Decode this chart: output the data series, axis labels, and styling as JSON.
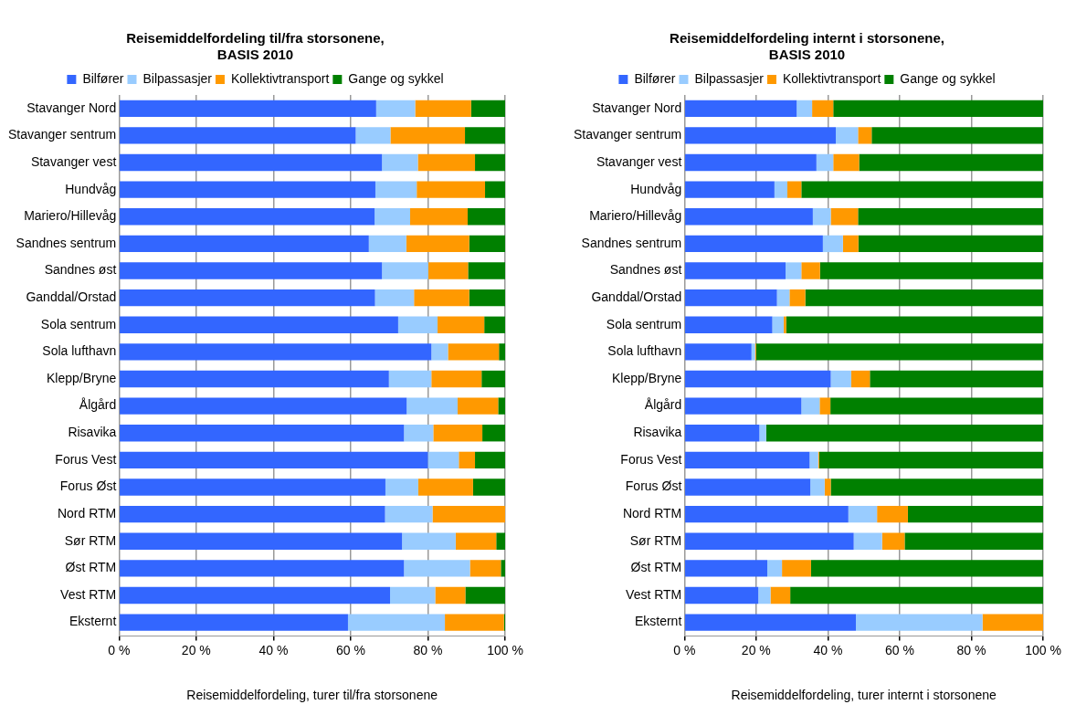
{
  "chart_data": [
    {
      "type": "bar",
      "orientation": "horizontal",
      "stacked": true,
      "title": "Reisemiddelfordeling til/fra storsonene, BASIS 2010",
      "xlabel": "Reisemiddelfordeling, turer til/fra storsonene",
      "categories": [
        "Stavanger Nord",
        "Stavanger sentrum",
        "Stavanger vest",
        "Hundvåg",
        "Mariero/Hillevåg",
        "Sandnes sentrum",
        "Sandnes øst",
        "Ganddal/Orstad",
        "Sola sentrum",
        "Sola lufthavn",
        "Klepp/Bryne",
        "Ålgård",
        "Risavika",
        "Forus Vest",
        "Forus Øst",
        "Nord RTM",
        "Sør RTM",
        "Øst RTM",
        "Vest RTM",
        "Eksternt"
      ],
      "series": [
        {
          "name": "Bilfører",
          "color": "#3366ff",
          "values": [
            66.6,
            61.3,
            68.1,
            66.4,
            66.2,
            64.7,
            68.1,
            66.3,
            72.3,
            80.9,
            69.9,
            74.5,
            73.8,
            80.0,
            69.0,
            68.9,
            73.3,
            73.8,
            70.2,
            59.3
          ]
        },
        {
          "name": "Bilpassasjer",
          "color": "#99ccff",
          "values": [
            10.1,
            9.0,
            9.3,
            10.7,
            9.2,
            9.7,
            12.0,
            10.1,
            10.2,
            4.3,
            11.0,
            13.2,
            7.6,
            8.0,
            8.5,
            12.3,
            13.9,
            17.1,
            11.7,
            25.1
          ]
        },
        {
          "name": "Kollektivtransport",
          "color": "#ff9900",
          "values": [
            14.5,
            19.3,
            14.8,
            17.7,
            14.9,
            16.3,
            10.3,
            14.3,
            12.1,
            13.2,
            13.0,
            10.5,
            12.7,
            4.2,
            14.2,
            18.8,
            10.5,
            8.0,
            7.8,
            15.3
          ]
        },
        {
          "name": "Gange og sykkel",
          "color": "#008000",
          "values": [
            8.8,
            10.4,
            7.8,
            5.2,
            9.7,
            9.3,
            9.6,
            9.3,
            5.4,
            1.6,
            6.1,
            1.8,
            5.9,
            7.8,
            8.3,
            0,
            2.3,
            1.1,
            10.3,
            0.3
          ]
        }
      ],
      "xlim": [
        0,
        100
      ],
      "xticks": [
        {
          "value": 0,
          "label": "0 %"
        },
        {
          "value": 20,
          "label": "20 %"
        },
        {
          "value": 40,
          "label": "40 %"
        },
        {
          "value": 60,
          "label": "60 %"
        },
        {
          "value": 80,
          "label": "80 %"
        },
        {
          "value": 100,
          "label": "100 %"
        }
      ],
      "grid": "x",
      "legend": "top"
    },
    {
      "type": "bar",
      "orientation": "horizontal",
      "stacked": true,
      "title": "Reisemiddelfordeling internt i storsonene, BASIS 2010",
      "xlabel": "Reisemiddelfordeling, turer internt i storsonene",
      "categories": [
        "Stavanger Nord",
        "Stavanger sentrum",
        "Stavanger vest",
        "Hundvåg",
        "Mariero/Hillevåg",
        "Sandnes sentrum",
        "Sandnes øst",
        "Ganddal/Orstad",
        "Sola sentrum",
        "Sola lufthavn",
        "Klepp/Bryne",
        "Ålgård",
        "Risavika",
        "Forus Vest",
        "Forus Øst",
        "Nord RTM",
        "Sør RTM",
        "Øst RTM",
        "Vest RTM",
        "Eksternt"
      ],
      "series": [
        {
          "name": "Bilfører",
          "color": "#3366ff",
          "values": [
            31.3,
            42.2,
            36.8,
            25.1,
            35.8,
            38.6,
            28.2,
            25.8,
            24.5,
            18.7,
            40.8,
            32.6,
            20.9,
            34.9,
            35.1,
            45.7,
            47.2,
            23.1,
            20.6,
            47.8
          ]
        },
        {
          "name": "Bilpassasjer",
          "color": "#99ccff",
          "values": [
            4.3,
            6.2,
            4.7,
            3.6,
            5.0,
            5.6,
            4.4,
            3.5,
            3.2,
            1.0,
            5.7,
            5.1,
            1.9,
            2.4,
            4.0,
            8.0,
            7.9,
            4.1,
            3.4,
            35.3
          ]
        },
        {
          "name": "Kollektivtransport",
          "color": "#ff9900",
          "values": [
            5.9,
            3.8,
            7.2,
            3.9,
            7.6,
            4.3,
            5.2,
            4.4,
            0.7,
            0.3,
            5.2,
            3.0,
            0,
            0.3,
            1.7,
            8.6,
            6.3,
            8.1,
            5.5,
            16.9
          ]
        },
        {
          "name": "Gange og sykkel",
          "color": "#008000",
          "values": [
            58.5,
            47.8,
            51.3,
            67.4,
            51.6,
            51.5,
            62.2,
            66.3,
            71.6,
            80.0,
            48.3,
            59.3,
            77.2,
            62.4,
            59.2,
            37.7,
            38.6,
            64.7,
            70.5,
            0
          ]
        }
      ],
      "xlim": [
        0,
        100
      ],
      "xticks": [
        {
          "value": 0,
          "label": "0 %"
        },
        {
          "value": 20,
          "label": "20 %"
        },
        {
          "value": 40,
          "label": "40 %"
        },
        {
          "value": 60,
          "label": "60 %"
        },
        {
          "value": 80,
          "label": "80 %"
        },
        {
          "value": 100,
          "label": "100 %"
        }
      ],
      "grid": "x",
      "legend": "top"
    }
  ]
}
